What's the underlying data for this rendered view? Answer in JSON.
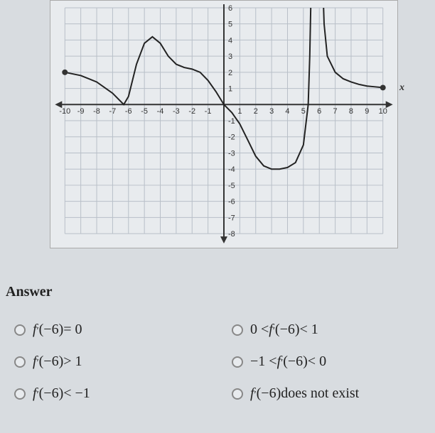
{
  "chart": {
    "type": "line",
    "background_color": "#e8ebee",
    "grid_color": "#b8bfc8",
    "axis_color": "#333333",
    "curve_color": "#222222",
    "curve_width": 2,
    "endpoint_fill": "#333333",
    "xlim": [
      -10,
      10
    ],
    "ylim": [
      -8,
      6
    ],
    "xtick_step": 1,
    "ytick_step": 1,
    "x_ticks": [
      -10,
      -9,
      -8,
      -7,
      -6,
      -5,
      -4,
      -3,
      -2,
      -1,
      1,
      2,
      3,
      4,
      5,
      6,
      7,
      8,
      9,
      10
    ],
    "y_ticks": [
      -8,
      -7,
      -6,
      -5,
      -4,
      -3,
      -2,
      -1,
      1,
      2,
      3,
      4,
      5,
      6
    ],
    "tick_fontsize": 11,
    "axis_label": "x",
    "curve_points": [
      [
        -10,
        2
      ],
      [
        -9,
        1.8
      ],
      [
        -8,
        1.4
      ],
      [
        -7,
        0.7
      ],
      [
        -6.3,
        0
      ],
      [
        -6,
        0.5
      ],
      [
        -5.5,
        2.5
      ],
      [
        -5,
        3.8
      ],
      [
        -4.5,
        4.2
      ],
      [
        -4,
        3.8
      ],
      [
        -3.5,
        3
      ],
      [
        -3,
        2.5
      ],
      [
        -2.5,
        2.3
      ],
      [
        -2,
        2.2
      ],
      [
        -1.5,
        2
      ],
      [
        -1,
        1.5
      ],
      [
        -0.5,
        0.8
      ],
      [
        0,
        0
      ],
      [
        0.5,
        -0.5
      ],
      [
        1,
        -1.2
      ],
      [
        1.5,
        -2.2
      ],
      [
        2,
        -3.2
      ],
      [
        2.5,
        -3.8
      ],
      [
        3,
        -4
      ],
      [
        3.5,
        -4
      ],
      [
        4,
        -3.9
      ],
      [
        4.5,
        -3.6
      ],
      [
        5,
        -2.5
      ],
      [
        5.3,
        0
      ],
      [
        5.4,
        3
      ],
      [
        5.5,
        8
      ]
    ],
    "curve2_points": [
      [
        6.2,
        8
      ],
      [
        6.3,
        5
      ],
      [
        6.5,
        3
      ],
      [
        7,
        2
      ],
      [
        7.5,
        1.6
      ],
      [
        8,
        1.4
      ],
      [
        8.5,
        1.25
      ],
      [
        9,
        1.15
      ],
      [
        9.5,
        1.1
      ],
      [
        10,
        1.05
      ]
    ],
    "left_endpoint": [
      -10,
      2
    ],
    "right_endpoint": [
      10,
      1.05
    ]
  },
  "answer": {
    "heading": "Answer",
    "options": [
      {
        "id": "opt1",
        "f": "f",
        "arg": "(−6)",
        "rel": " = 0"
      },
      {
        "id": "opt2",
        "pre": "0 < ",
        "f": "f",
        "arg": "(−6)",
        "rel": " < 1"
      },
      {
        "id": "opt3",
        "f": "f",
        "arg": "(−6)",
        "rel": " > 1"
      },
      {
        "id": "opt4",
        "pre": "−1 < ",
        "f": "f",
        "arg": "(−6)",
        "rel": " < 0"
      },
      {
        "id": "opt5",
        "f": "f",
        "arg": "(−6)",
        "rel": " < −1"
      },
      {
        "id": "opt6",
        "f": "f",
        "arg": "(−6)",
        "rel_plain": " does not exist"
      }
    ]
  }
}
